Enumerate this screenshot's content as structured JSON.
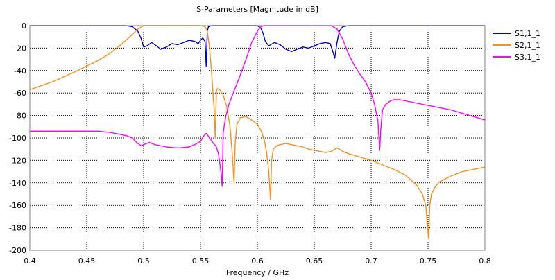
{
  "chart_data": {
    "type": "line",
    "title": "S-Parameters [Magnitude in dB]",
    "xlabel": "Frequency / GHz",
    "ylabel": "",
    "xlim": [
      0.4,
      0.8
    ],
    "ylim": [
      -200,
      0
    ],
    "xticks": [
      0.4,
      0.45,
      0.5,
      0.55,
      0.6,
      0.65,
      0.7,
      0.75,
      0.8
    ],
    "xtick_labels": [
      "0.4",
      "0.45",
      "0.5",
      "0.55",
      "0.6",
      "0.65",
      "0.7",
      "0.75",
      "0.8"
    ],
    "yticks": [
      0,
      -20,
      -40,
      -60,
      -80,
      -100,
      -120,
      -140,
      -160,
      -180,
      -200
    ],
    "ytick_labels": [
      "0",
      "-20",
      "-40",
      "-60",
      "-80",
      "-100",
      "-120",
      "-140",
      "-160",
      "-180",
      "-200"
    ],
    "grid": true,
    "grid_style": "dotted",
    "legend_position": "top-right",
    "series": [
      {
        "name": "S1,1_1",
        "color": "#0000cc",
        "x": [
          0.4,
          0.47,
          0.485,
          0.49,
          0.495,
          0.498,
          0.5,
          0.503,
          0.507,
          0.51,
          0.515,
          0.52,
          0.525,
          0.53,
          0.535,
          0.54,
          0.545,
          0.548,
          0.55,
          0.552,
          0.554,
          0.5545,
          0.555,
          0.5555,
          0.556,
          0.557,
          0.56,
          0.6,
          0.603,
          0.605,
          0.607,
          0.61,
          0.615,
          0.62,
          0.625,
          0.63,
          0.635,
          0.64,
          0.645,
          0.65,
          0.655,
          0.66,
          0.664,
          0.666,
          0.668,
          0.67,
          0.672,
          0.675,
          0.68,
          0.8
        ],
        "y": [
          0,
          0,
          0,
          -1,
          -5,
          -12,
          -19,
          -18,
          -15,
          -17,
          -21,
          -19,
          -16,
          -17,
          -15,
          -13,
          -14,
          -16,
          -13,
          -11,
          -14,
          -25,
          -36,
          -20,
          -5,
          -1,
          0,
          0,
          -2,
          -7,
          -14,
          -18,
          -15,
          -17,
          -21,
          -23,
          -21,
          -19,
          -20,
          -18,
          -16,
          -15,
          -16,
          -22,
          -29,
          -15,
          -5,
          -1,
          0,
          0
        ]
      },
      {
        "name": "S2,1_1",
        "color": "#ff8c1a",
        "x": [
          0.4,
          0.42,
          0.44,
          0.46,
          0.47,
          0.48,
          0.49,
          0.495,
          0.5,
          0.55,
          0.554,
          0.556,
          0.558,
          0.56,
          0.562,
          0.563,
          0.564,
          0.565,
          0.567,
          0.57,
          0.573,
          0.576,
          0.578,
          0.5795,
          0.5805,
          0.582,
          0.585,
          0.59,
          0.595,
          0.6,
          0.603,
          0.606,
          0.608,
          0.61,
          0.6115,
          0.6125,
          0.614,
          0.617,
          0.62,
          0.625,
          0.63,
          0.635,
          0.64,
          0.645,
          0.65,
          0.655,
          0.66,
          0.665,
          0.668,
          0.67,
          0.672,
          0.675,
          0.68,
          0.69,
          0.7,
          0.71,
          0.72,
          0.73,
          0.74,
          0.745,
          0.748,
          0.7505,
          0.7515,
          0.753,
          0.756,
          0.76,
          0.77,
          0.78,
          0.79,
          0.8
        ],
        "y": [
          -57,
          -50,
          -41,
          -31,
          -25,
          -17,
          -8,
          -3,
          0,
          0,
          -1,
          -5,
          -20,
          -45,
          -75,
          -100,
          -58,
          -56,
          -57,
          -62,
          -72,
          -90,
          -115,
          -140,
          -105,
          -88,
          -82,
          -81,
          -84,
          -88,
          -93,
          -101,
          -112,
          -130,
          -155,
          -120,
          -110,
          -107,
          -106,
          -105,
          -106,
          -107,
          -108,
          -110,
          -111,
          -112,
          -113,
          -112,
          -110,
          -109,
          -110,
          -112,
          -114,
          -117,
          -120,
          -124,
          -128,
          -133,
          -142,
          -150,
          -160,
          -190,
          -160,
          -150,
          -144,
          -139,
          -134,
          -130,
          -128,
          -126
        ]
      },
      {
        "name": "S3,1_1",
        "color": "#ff00ff",
        "x": [
          0.4,
          0.45,
          0.46,
          0.47,
          0.48,
          0.485,
          0.49,
          0.495,
          0.498,
          0.5,
          0.505,
          0.51,
          0.52,
          0.53,
          0.54,
          0.545,
          0.55,
          0.553,
          0.555,
          0.556,
          0.558,
          0.56,
          0.564,
          0.566,
          0.568,
          0.569,
          0.57,
          0.572,
          0.575,
          0.58,
          0.585,
          0.59,
          0.595,
          0.6,
          0.603,
          0.606,
          0.61,
          0.64,
          0.665,
          0.67,
          0.675,
          0.68,
          0.685,
          0.69,
          0.695,
          0.7,
          0.703,
          0.706,
          0.7075,
          0.7085,
          0.71,
          0.713,
          0.717,
          0.72,
          0.725,
          0.73,
          0.74,
          0.75,
          0.76,
          0.77,
          0.78,
          0.79,
          0.8
        ],
        "y": [
          -94,
          -94,
          -94,
          -95,
          -97,
          -98,
          -100,
          -105,
          -107,
          -106,
          -104,
          -106,
          -108,
          -109,
          -108,
          -106,
          -103,
          -98,
          -96,
          -97,
          -100,
          -103,
          -108,
          -115,
          -130,
          -143,
          -95,
          -82,
          -70,
          -57,
          -44,
          -30,
          -15,
          -5,
          -1,
          0,
          0,
          0,
          0,
          -3,
          -12,
          -25,
          -35,
          -43,
          -50,
          -60,
          -70,
          -85,
          -111,
          -92,
          -75,
          -70,
          -67,
          -66,
          -66,
          -67,
          -69,
          -71,
          -73,
          -75,
          -78,
          -81,
          -84
        ]
      }
    ]
  }
}
